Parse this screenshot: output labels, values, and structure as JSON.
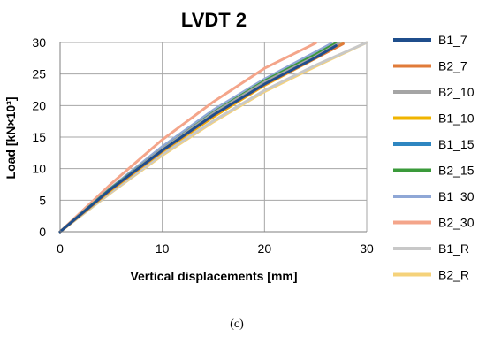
{
  "caption": "(c)",
  "chart_data": {
    "type": "line",
    "title": "LVDT 2",
    "xlabel": "Vertical displacements [mm]",
    "ylabel": "Load [kN×10³]",
    "xlim": [
      0,
      30
    ],
    "ylim": [
      0,
      30
    ],
    "xticks": [
      "0",
      "10",
      "20",
      "30"
    ],
    "yticks": [
      "0",
      "5",
      "10",
      "15",
      "20",
      "25",
      "30"
    ],
    "grid": true,
    "legend_position": "right",
    "series": [
      {
        "name": "B1_7",
        "color": "#1f4e8c",
        "points": [
          [
            0,
            0
          ],
          [
            5,
            6.8
          ],
          [
            10,
            12.9
          ],
          [
            15,
            18.5
          ],
          [
            20,
            23.4
          ],
          [
            25,
            27.6
          ],
          [
            27,
            29.5
          ]
        ]
      },
      {
        "name": "B2_7",
        "color": "#e07b39",
        "points": [
          [
            0,
            0
          ],
          [
            5,
            6.7
          ],
          [
            10,
            12.8
          ],
          [
            15,
            18.4
          ],
          [
            20,
            23.3
          ],
          [
            25,
            27.5
          ],
          [
            27.7,
            29.8
          ]
        ]
      },
      {
        "name": "B2_10",
        "color": "#a5a5a5",
        "points": [
          [
            0,
            0
          ],
          [
            5,
            6.8
          ],
          [
            10,
            13.1
          ],
          [
            15,
            18.8
          ],
          [
            20,
            23.7
          ],
          [
            25,
            27.8
          ],
          [
            27.3,
            29.9
          ]
        ]
      },
      {
        "name": "B1_10",
        "color": "#f0b400",
        "points": [
          [
            0,
            0
          ],
          [
            5,
            6.6
          ],
          [
            10,
            12.7
          ],
          [
            15,
            18.2
          ],
          [
            20,
            23.2
          ],
          [
            25,
            27.5
          ],
          [
            27.5,
            29.7
          ]
        ]
      },
      {
        "name": "B1_15",
        "color": "#2e86c1",
        "points": [
          [
            0,
            0
          ],
          [
            5,
            6.7
          ],
          [
            10,
            12.8
          ],
          [
            15,
            18.4
          ],
          [
            20,
            23.3
          ],
          [
            25,
            27.7
          ],
          [
            27.2,
            29.8
          ]
        ]
      },
      {
        "name": "B2_15",
        "color": "#3a9a3a",
        "points": [
          [
            0,
            0
          ],
          [
            5,
            6.9
          ],
          [
            10,
            13.1
          ],
          [
            15,
            18.9
          ],
          [
            20,
            23.9
          ],
          [
            25,
            28.1
          ],
          [
            27.0,
            29.9
          ]
        ]
      },
      {
        "name": "B1_30",
        "color": "#8fa7d6",
        "points": [
          [
            0,
            0
          ],
          [
            5,
            7.0
          ],
          [
            10,
            13.5
          ],
          [
            15,
            19.3
          ],
          [
            20,
            24.2
          ],
          [
            25,
            28.5
          ],
          [
            26.5,
            29.8
          ]
        ]
      },
      {
        "name": "B2_30",
        "color": "#f4a58a",
        "points": [
          [
            0,
            0
          ],
          [
            5,
            7.6
          ],
          [
            10,
            14.6
          ],
          [
            15,
            20.6
          ],
          [
            20,
            25.9
          ],
          [
            25,
            29.9
          ]
        ]
      },
      {
        "name": "B1_R",
        "color": "#c8c8c8",
        "points": [
          [
            0,
            0
          ],
          [
            5,
            6.3
          ],
          [
            10,
            12.3
          ],
          [
            15,
            17.6
          ],
          [
            20,
            22.4
          ],
          [
            25,
            26.4
          ],
          [
            30,
            30
          ]
        ]
      },
      {
        "name": "B2_R",
        "color": "#f5d27a",
        "points": [
          [
            0,
            0
          ],
          [
            5,
            6.2
          ],
          [
            10,
            12.1
          ],
          [
            15,
            17.4
          ],
          [
            20,
            22.2
          ],
          [
            25,
            26.2
          ],
          [
            30,
            30
          ]
        ]
      }
    ]
  }
}
